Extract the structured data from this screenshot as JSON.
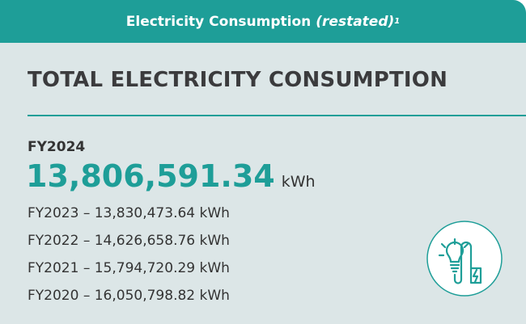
{
  "header": {
    "title": "Electricity Consumption",
    "qualifier": "(restated)",
    "footnote": "1"
  },
  "heading": "TOTAL ELECTRICITY CONSUMPTION",
  "current": {
    "label": "FY2024",
    "value": "13,806,591.34",
    "unit": "kWh"
  },
  "history": [
    "FY2023 – 13,830,473.64 kWh",
    "FY2022 – 14,626,658.76 kWh",
    "FY2021 – 15,794,720.29 kWh",
    "FY2020 – 16,050,798.82 kWh"
  ]
}
